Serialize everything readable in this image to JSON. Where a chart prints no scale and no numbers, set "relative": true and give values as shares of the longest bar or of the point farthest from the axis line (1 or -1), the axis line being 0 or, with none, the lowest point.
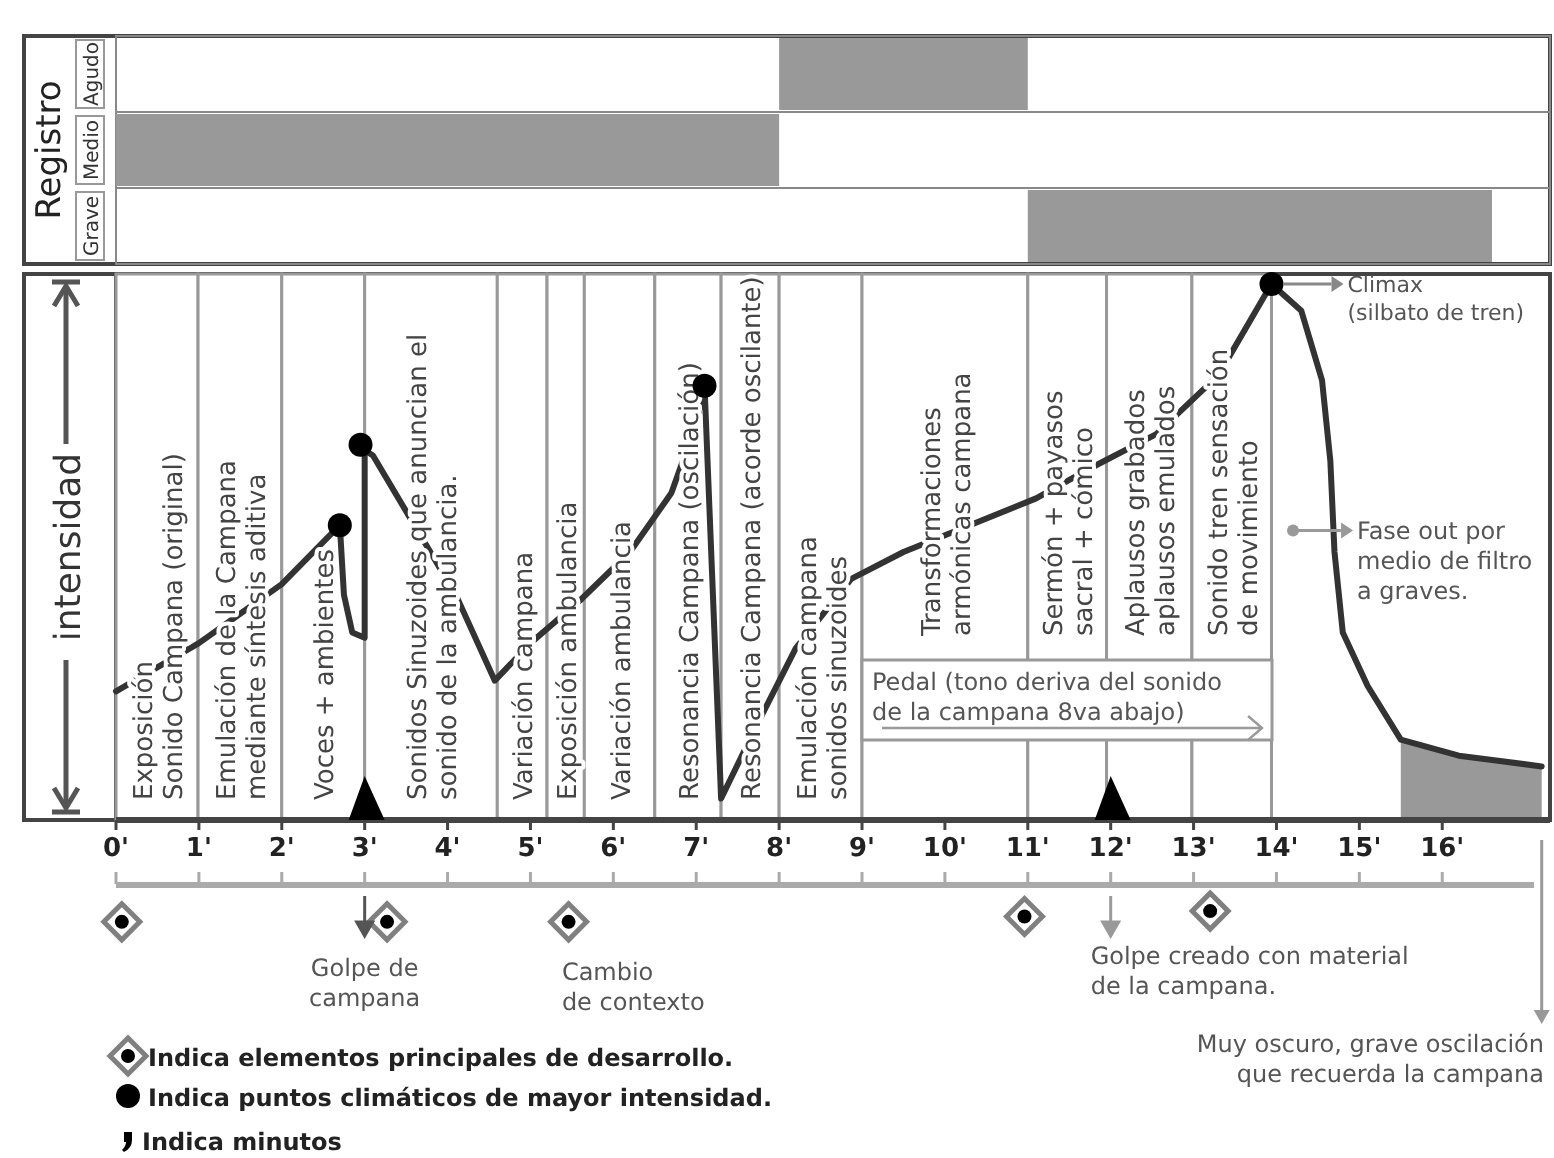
{
  "chart_data": [
    {
      "type": "bar",
      "orientation": "horizontal",
      "ylabel": "Registro",
      "categories": [
        "Agudo",
        "Medio",
        "Grave"
      ],
      "base": [
        8.0,
        0,
        11.0
      ],
      "values": [
        3.0,
        8.0,
        5.6
      ],
      "color": "#999999",
      "xlim": [
        0,
        17.3
      ],
      "tick_labels": "y"
    },
    {
      "type": "line",
      "relative": true,
      "ylabel": "intensidad",
      "marker": "none",
      "line_style": "solid",
      "grid": false,
      "legend": "bottom left",
      "xlim": [
        0,
        17.3
      ],
      "xticks": [
        {
          "value": 0,
          "label": "0'"
        },
        {
          "value": 1,
          "label": "1'"
        },
        {
          "value": 2,
          "label": "2'"
        },
        {
          "value": 3,
          "label": "3'"
        },
        {
          "value": 4,
          "label": "4'"
        },
        {
          "value": 5,
          "label": "5'"
        },
        {
          "value": 6,
          "label": "6'"
        },
        {
          "value": 7,
          "label": "7'"
        },
        {
          "value": 8,
          "label": "8'"
        },
        {
          "value": 9,
          "label": "9'"
        },
        {
          "value": 10,
          "label": "10'"
        },
        {
          "value": 11,
          "label": "11'"
        },
        {
          "value": 12,
          "label": "12'"
        },
        {
          "value": 13,
          "label": "13'"
        },
        {
          "value": 14,
          "label": "14'"
        },
        {
          "value": 15,
          "label": "15'"
        },
        {
          "value": 16,
          "label": "16'"
        }
      ],
      "series": [
        {
          "type": "line",
          "color": "#333333",
          "x": [
            0,
            1,
            2,
            2.7,
            2.75,
            2.85,
            3.0,
            3.0,
            3.1,
            3.6,
            4.1,
            4.57,
            5.0,
            5.6,
            6.2,
            6.7,
            7.0,
            7.1,
            7.3,
            7.74,
            8.2,
            8.87,
            9.5,
            10.3,
            11.1,
            11.8,
            12.55,
            13.3,
            13.94,
            14.3,
            14.55,
            14.65,
            14.7,
            14.8,
            15.1,
            15.5,
            16.2,
            17.2
          ],
          "values": [
            0.24,
            0.33,
            0.44,
            0.55,
            0.42,
            0.35,
            0.34,
            0.69,
            0.68,
            0.55,
            0.42,
            0.26,
            0.33,
            0.41,
            0.5,
            0.61,
            0.74,
            0.81,
            0.04,
            0.18,
            0.32,
            0.45,
            0.5,
            0.55,
            0.6,
            0.66,
            0.72,
            0.83,
            1.0,
            0.95,
            0.82,
            0.67,
            0.5,
            0.35,
            0.25,
            0.15,
            0.12,
            0.1
          ]
        },
        {
          "type": "area",
          "color": "#999999",
          "x": [
            15.5,
            16.2,
            17.2
          ],
          "values": [
            0.15,
            0.12,
            0.1
          ]
        },
        {
          "type": "scatter",
          "name": "Indica elementos principales de desarrollo.",
          "marker": "diamond",
          "color": "#808080",
          "x": [
            0.07,
            3.27,
            5.46,
            10.96,
            13.2
          ],
          "values": [
            -0.19,
            -0.19,
            -0.19,
            -0.18,
            -0.17
          ]
        },
        {
          "type": "scatter",
          "name": "Indica puntos climáticos de mayor intensidad.",
          "marker": "circle",
          "color": "#000000",
          "x": [
            2.7,
            2.95,
            7.1,
            13.94
          ],
          "values": [
            0.55,
            0.7,
            0.81,
            1.0
          ]
        }
      ],
      "bands": [
        {
          "axis": "x",
          "from": 0,
          "to": 0.99,
          "label": "Exposición\nSonido Campana (original)",
          "color": "#ffffff"
        },
        {
          "axis": "x",
          "from": 0.99,
          "to": 2.0,
          "label": "Emulación de la Campana\nmediante síntesis aditiva",
          "color": "#ffffff"
        },
        {
          "axis": "x",
          "from": 2.0,
          "to": 3.0,
          "label": "Voces + ambientes",
          "color": "#ffffff"
        },
        {
          "axis": "x",
          "from": 3.0,
          "to": 4.6,
          "label": "Sonidos Sinuzoides que anuncian el\nsonido de la ambulancia.",
          "color": "#ffffff"
        },
        {
          "axis": "x",
          "from": 4.6,
          "to": 5.2,
          "label": "Variación campana",
          "color": "#ffffff"
        },
        {
          "axis": "x",
          "from": 5.2,
          "to": 5.65,
          "label": "Exposición ambulancia",
          "color": "#ffffff"
        },
        {
          "axis": "x",
          "from": 5.65,
          "to": 6.5,
          "label": "Variación ambulancia",
          "color": "#ffffff"
        },
        {
          "axis": "x",
          "from": 6.5,
          "to": 7.3,
          "label": "Resonancia Campana (oscilación)",
          "color": "#ffffff"
        },
        {
          "axis": "x",
          "from": 7.3,
          "to": 8.0,
          "label": "Resonancia Campana (acorde oscilante)",
          "color": "#ffffff"
        },
        {
          "axis": "x",
          "from": 8.0,
          "to": 9.0,
          "label": "Emulación campana\nsonidos sinuzoides",
          "color": "#ffffff"
        },
        {
          "axis": "x",
          "from": 9.0,
          "to": 11.0,
          "label": "Transformaciones\narmónicas campana",
          "color": "#ffffff"
        },
        {
          "axis": "x",
          "from": 11.0,
          "to": 11.95,
          "label": "Sermón + payasos\nsacral + cómico",
          "color": "#ffffff"
        },
        {
          "axis": "x",
          "from": 11.95,
          "to": 12.98,
          "label": "Aplausos grabados\naplausos emulados",
          "color": "#ffffff"
        },
        {
          "axis": "x",
          "from": 12.98,
          "to": 13.94,
          "label": "Sonido tren sensación\nde movimiento",
          "color": "#ffffff"
        }
      ],
      "annotations": [
        "Climax\n(silbato de tren)",
        {
          "text": "Fase out por\nmedio de filtro\na graves.",
          "x": 14.2,
          "y": 0.54
        },
        {
          "text": "Pedal (tono deriva del sonido\nde la campana 8va abajo)",
          "x": 9.0
        },
        "Golpe de\ncampana",
        "Golpe creado con material\nde la campana.",
        "Cambio\nde contexto",
        "Muy oscuro, grave oscilación\nque recuerda la campana",
        "Indica minutos"
      ]
    }
  ]
}
